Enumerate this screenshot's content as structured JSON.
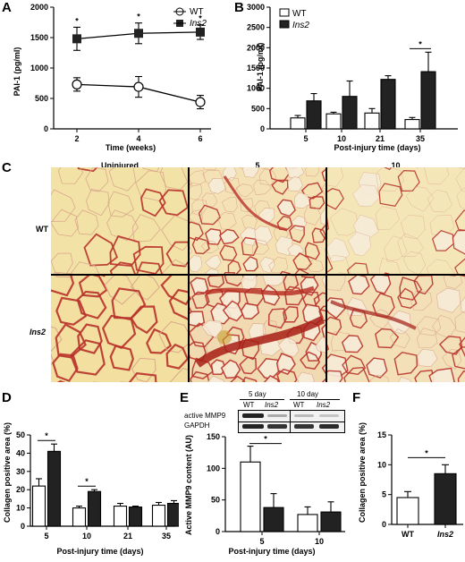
{
  "panels": {
    "A": {
      "label": "A",
      "ylabel": "PAI-1 (pg/ml)",
      "xlabel": "Time (weeks)",
      "yticks": [
        "0",
        "500",
        "1000",
        "1500",
        "2000"
      ],
      "xticks": [
        "2",
        "4",
        "6"
      ],
      "legend": [
        "WT",
        "Ins2"
      ],
      "star": "*"
    },
    "B": {
      "label": "B",
      "ylabel": "PAI-1 (pg/ml)",
      "xlabel": "Post-injury time (days)",
      "yticks": [
        "0",
        "500",
        "1000",
        "1500",
        "2000",
        "2500",
        "3000"
      ],
      "xticks": [
        "5",
        "10",
        "21",
        "35"
      ],
      "legend": [
        "WT",
        "Ins2"
      ],
      "star": "*"
    },
    "C": {
      "label": "C",
      "columns": [
        "Uninjured",
        "5",
        "10"
      ],
      "rows": [
        "WT",
        "Ins2"
      ]
    },
    "D": {
      "label": "D",
      "ylabel": "Collagen positive area (%)",
      "xlabel": "Post-injury time (days)",
      "yticks": [
        "0",
        "10",
        "20",
        "30",
        "40",
        "50"
      ],
      "xticks": [
        "5",
        "10",
        "21",
        "35"
      ],
      "star": "*"
    },
    "E": {
      "label": "E",
      "ylabel": "Active MMP9 content (AU)",
      "xlabel": "Post-injury time (days)",
      "yticks": [
        "0",
        "50",
        "100",
        "150"
      ],
      "xticks": [
        "5",
        "10"
      ],
      "star": "*",
      "blot": {
        "day5": "5 day",
        "day10": "10 day",
        "wt": "WT",
        "ins2": "Ins2",
        "row1": "active MMP9",
        "row2": "GAPDH"
      }
    },
    "F": {
      "label": "F",
      "ylabel": "Collagen positive area (%)",
      "yticks": [
        "0",
        "5",
        "10",
        "15"
      ],
      "xticks": [
        "WT",
        "Ins2"
      ],
      "star": "*"
    }
  },
  "chart_data": [
    {
      "panel": "A",
      "type": "line",
      "xlabel": "Time (weeks)",
      "ylabel": "PAI-1 (pg/ml)",
      "x": [
        2,
        4,
        6
      ],
      "ylim": [
        0,
        2000
      ],
      "series": [
        {
          "name": "WT",
          "values": [
            730,
            690,
            440
          ],
          "err": [
            110,
            170,
            110
          ],
          "color": "#ffffff"
        },
        {
          "name": "Ins2",
          "values": [
            1480,
            1570,
            1590
          ],
          "err": [
            190,
            170,
            120
          ],
          "color": "#222222"
        }
      ],
      "significant_at": [
        2,
        4,
        6
      ]
    },
    {
      "panel": "B",
      "type": "bar",
      "xlabel": "Post-injury time (days)",
      "ylabel": "PAI-1 (pg/ml)",
      "categories": [
        "5",
        "10",
        "21",
        "35"
      ],
      "ylim": [
        0,
        3000
      ],
      "series": [
        {
          "name": "WT",
          "values": [
            270,
            370,
            390,
            230
          ],
          "err": [
            60,
            40,
            110,
            50
          ],
          "color": "#ffffff"
        },
        {
          "name": "Ins2",
          "values": [
            690,
            800,
            1220,
            1410
          ],
          "err": [
            180,
            380,
            90,
            480
          ],
          "color": "#222222"
        }
      ],
      "significant_at": [
        "35"
      ]
    },
    {
      "panel": "D",
      "type": "bar",
      "xlabel": "Post-injury time (days)",
      "ylabel": "Collagen positive area (%)",
      "categories": [
        "5",
        "10",
        "21",
        "35"
      ],
      "ylim": [
        0,
        50
      ],
      "series": [
        {
          "name": "WT",
          "values": [
            22,
            10,
            11,
            11.5
          ],
          "err": [
            4,
            1,
            1.5,
            1.5
          ],
          "color": "#ffffff"
        },
        {
          "name": "Ins2",
          "values": [
            41,
            19,
            10.5,
            12.5
          ],
          "err": [
            4,
            1,
            0.5,
            1.5
          ],
          "color": "#222222"
        }
      ],
      "significant_at": [
        "5",
        "10"
      ]
    },
    {
      "panel": "E",
      "type": "bar",
      "xlabel": "Post-injury time (days)",
      "ylabel": "Active MMP9 content (AU)",
      "categories": [
        "5",
        "10"
      ],
      "ylim": [
        0,
        150
      ],
      "series": [
        {
          "name": "WT",
          "values": [
            110,
            27
          ],
          "err": [
            25,
            12
          ],
          "color": "#ffffff"
        },
        {
          "name": "Ins2",
          "values": [
            38,
            31
          ],
          "err": [
            22,
            16
          ],
          "color": "#222222"
        }
      ],
      "significant_at": [
        "5"
      ]
    },
    {
      "panel": "F",
      "type": "bar",
      "ylabel": "Collagen positive area (%)",
      "categories": [
        "WT",
        "Ins2"
      ],
      "ylim": [
        0,
        15
      ],
      "values": [
        4.5,
        8.5
      ],
      "err": [
        1.0,
        1.5
      ],
      "colors": [
        "#ffffff",
        "#222222"
      ],
      "significant": true
    }
  ]
}
